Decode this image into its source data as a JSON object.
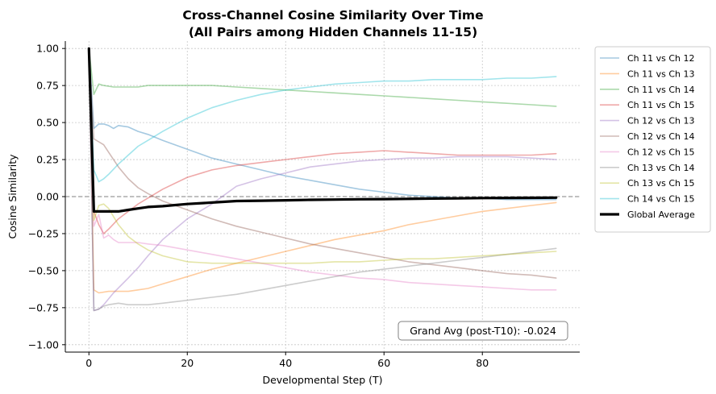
{
  "chart_data": {
    "type": "line",
    "title_line1": "Cross-Channel Cosine Similarity Over Time",
    "title_line2": "(All Pairs among Hidden Channels 11-15)",
    "xlabel": "Developmental Step (T)",
    "ylabel": "Cosine Similarity",
    "xlim": [
      -4.8,
      99.8
    ],
    "ylim": [
      -1.05,
      1.05
    ],
    "xticks": [
      0,
      20,
      40,
      60,
      80
    ],
    "yticks": [
      -1.0,
      -0.75,
      -0.5,
      -0.25,
      0.0,
      0.25,
      0.5,
      0.75,
      1.0
    ],
    "ytick_labels": [
      "−1.00",
      "−0.75",
      "−0.50",
      "−0.25",
      "0.00",
      "0.25",
      "0.50",
      "0.75",
      "1.00"
    ],
    "grid": true,
    "reference_line_y": 0,
    "legend_position": "outside-right",
    "annotation": "Grand Avg (post-T10): -0.024",
    "series": [
      {
        "name": "Ch 11 vs Ch 12",
        "color": "#1f77b4",
        "points": [
          [
            0,
            1.0
          ],
          [
            1,
            0.46
          ],
          [
            2,
            0.49
          ],
          [
            3,
            0.49
          ],
          [
            4,
            0.48
          ],
          [
            5,
            0.46
          ],
          [
            6,
            0.48
          ],
          [
            8,
            0.47
          ],
          [
            10,
            0.44
          ],
          [
            12,
            0.42
          ],
          [
            15,
            0.38
          ],
          [
            20,
            0.32
          ],
          [
            25,
            0.26
          ],
          [
            30,
            0.22
          ],
          [
            35,
            0.18
          ],
          [
            40,
            0.14
          ],
          [
            45,
            0.11
          ],
          [
            50,
            0.08
          ],
          [
            55,
            0.05
          ],
          [
            60,
            0.03
          ],
          [
            65,
            0.01
          ],
          [
            70,
            0.0
          ],
          [
            75,
            -0.01
          ],
          [
            80,
            -0.01
          ],
          [
            85,
            -0.02
          ],
          [
            90,
            -0.02
          ],
          [
            95,
            -0.02
          ]
        ]
      },
      {
        "name": "Ch 11 vs Ch 13",
        "color": "#ff7f0e",
        "points": [
          [
            0,
            1.0
          ],
          [
            1,
            -0.63
          ],
          [
            2,
            -0.65
          ],
          [
            4,
            -0.64
          ],
          [
            6,
            -0.64
          ],
          [
            8,
            -0.64
          ],
          [
            10,
            -0.63
          ],
          [
            12,
            -0.62
          ],
          [
            15,
            -0.59
          ],
          [
            20,
            -0.54
          ],
          [
            25,
            -0.49
          ],
          [
            30,
            -0.45
          ],
          [
            35,
            -0.41
          ],
          [
            40,
            -0.37
          ],
          [
            45,
            -0.33
          ],
          [
            50,
            -0.29
          ],
          [
            55,
            -0.26
          ],
          [
            60,
            -0.23
          ],
          [
            65,
            -0.19
          ],
          [
            70,
            -0.16
          ],
          [
            75,
            -0.13
          ],
          [
            80,
            -0.1
          ],
          [
            85,
            -0.08
          ],
          [
            90,
            -0.06
          ],
          [
            95,
            -0.04
          ]
        ]
      },
      {
        "name": "Ch 11 vs Ch 14",
        "color": "#2ca02c",
        "points": [
          [
            0,
            1.0
          ],
          [
            1,
            0.69
          ],
          [
            2,
            0.76
          ],
          [
            3,
            0.75
          ],
          [
            5,
            0.74
          ],
          [
            8,
            0.74
          ],
          [
            10,
            0.74
          ],
          [
            12,
            0.75
          ],
          [
            15,
            0.75
          ],
          [
            20,
            0.75
          ],
          [
            25,
            0.75
          ],
          [
            30,
            0.74
          ],
          [
            35,
            0.73
          ],
          [
            40,
            0.72
          ],
          [
            45,
            0.71
          ],
          [
            50,
            0.7
          ],
          [
            55,
            0.69
          ],
          [
            60,
            0.68
          ],
          [
            65,
            0.67
          ],
          [
            70,
            0.66
          ],
          [
            75,
            0.65
          ],
          [
            80,
            0.64
          ],
          [
            85,
            0.63
          ],
          [
            90,
            0.62
          ],
          [
            95,
            0.61
          ]
        ]
      },
      {
        "name": "Ch 11 vs Ch 15",
        "color": "#d62728",
        "points": [
          [
            0,
            1.0
          ],
          [
            1,
            -0.1
          ],
          [
            2,
            -0.19
          ],
          [
            3,
            -0.25
          ],
          [
            4,
            -0.22
          ],
          [
            6,
            -0.15
          ],
          [
            8,
            -0.1
          ],
          [
            10,
            -0.05
          ],
          [
            12,
            -0.01
          ],
          [
            15,
            0.05
          ],
          [
            20,
            0.13
          ],
          [
            25,
            0.18
          ],
          [
            30,
            0.21
          ],
          [
            35,
            0.23
          ],
          [
            40,
            0.25
          ],
          [
            45,
            0.27
          ],
          [
            50,
            0.29
          ],
          [
            55,
            0.3
          ],
          [
            60,
            0.31
          ],
          [
            65,
            0.3
          ],
          [
            70,
            0.29
          ],
          [
            75,
            0.28
          ],
          [
            80,
            0.28
          ],
          [
            85,
            0.28
          ],
          [
            90,
            0.28
          ],
          [
            95,
            0.29
          ]
        ]
      },
      {
        "name": "Ch 12 vs Ch 13",
        "color": "#9467bd",
        "points": [
          [
            0,
            1.0
          ],
          [
            1,
            -0.77
          ],
          [
            2,
            -0.76
          ],
          [
            3,
            -0.73
          ],
          [
            5,
            -0.65
          ],
          [
            8,
            -0.55
          ],
          [
            10,
            -0.48
          ],
          [
            12,
            -0.4
          ],
          [
            15,
            -0.29
          ],
          [
            20,
            -0.15
          ],
          [
            25,
            -0.05
          ],
          [
            30,
            0.07
          ],
          [
            35,
            0.12
          ],
          [
            40,
            0.16
          ],
          [
            45,
            0.2
          ],
          [
            50,
            0.22
          ],
          [
            55,
            0.24
          ],
          [
            60,
            0.25
          ],
          [
            65,
            0.26
          ],
          [
            70,
            0.26
          ],
          [
            75,
            0.27
          ],
          [
            80,
            0.27
          ],
          [
            85,
            0.27
          ],
          [
            90,
            0.26
          ],
          [
            95,
            0.25
          ]
        ]
      },
      {
        "name": "Ch 12 vs Ch 14",
        "color": "#8c564b",
        "points": [
          [
            0,
            1.0
          ],
          [
            1,
            0.39
          ],
          [
            2,
            0.37
          ],
          [
            3,
            0.35
          ],
          [
            4,
            0.3
          ],
          [
            6,
            0.2
          ],
          [
            8,
            0.12
          ],
          [
            10,
            0.06
          ],
          [
            12,
            0.02
          ],
          [
            15,
            -0.03
          ],
          [
            20,
            -0.09
          ],
          [
            25,
            -0.15
          ],
          [
            30,
            -0.2
          ],
          [
            35,
            -0.24
          ],
          [
            40,
            -0.28
          ],
          [
            45,
            -0.32
          ],
          [
            50,
            -0.35
          ],
          [
            55,
            -0.38
          ],
          [
            60,
            -0.41
          ],
          [
            65,
            -0.44
          ],
          [
            70,
            -0.46
          ],
          [
            75,
            -0.48
          ],
          [
            80,
            -0.5
          ],
          [
            85,
            -0.52
          ],
          [
            90,
            -0.53
          ],
          [
            95,
            -0.55
          ]
        ]
      },
      {
        "name": "Ch 12 vs Ch 15",
        "color": "#e377c2",
        "points": [
          [
            0,
            1.0
          ],
          [
            1,
            -0.2
          ],
          [
            2,
            -0.12
          ],
          [
            3,
            -0.28
          ],
          [
            4,
            -0.26
          ],
          [
            5,
            -0.29
          ],
          [
            6,
            -0.31
          ],
          [
            8,
            -0.31
          ],
          [
            10,
            -0.31
          ],
          [
            12,
            -0.32
          ],
          [
            15,
            -0.33
          ],
          [
            20,
            -0.36
          ],
          [
            25,
            -0.39
          ],
          [
            30,
            -0.42
          ],
          [
            35,
            -0.45
          ],
          [
            40,
            -0.48
          ],
          [
            45,
            -0.51
          ],
          [
            50,
            -0.53
          ],
          [
            55,
            -0.55
          ],
          [
            60,
            -0.56
          ],
          [
            65,
            -0.58
          ],
          [
            70,
            -0.59
          ],
          [
            75,
            -0.6
          ],
          [
            80,
            -0.61
          ],
          [
            85,
            -0.62
          ],
          [
            90,
            -0.63
          ],
          [
            95,
            -0.63
          ]
        ]
      },
      {
        "name": "Ch 13 vs Ch 14",
        "color": "#7f7f7f",
        "points": [
          [
            0,
            1.0
          ],
          [
            1,
            -0.77
          ],
          [
            2,
            -0.76
          ],
          [
            3,
            -0.74
          ],
          [
            4,
            -0.73
          ],
          [
            6,
            -0.72
          ],
          [
            8,
            -0.73
          ],
          [
            10,
            -0.73
          ],
          [
            12,
            -0.73
          ],
          [
            15,
            -0.72
          ],
          [
            20,
            -0.7
          ],
          [
            25,
            -0.68
          ],
          [
            30,
            -0.66
          ],
          [
            35,
            -0.63
          ],
          [
            40,
            -0.6
          ],
          [
            45,
            -0.57
          ],
          [
            50,
            -0.54
          ],
          [
            55,
            -0.51
          ],
          [
            60,
            -0.49
          ],
          [
            65,
            -0.47
          ],
          [
            70,
            -0.45
          ],
          [
            75,
            -0.43
          ],
          [
            80,
            -0.41
          ],
          [
            85,
            -0.39
          ],
          [
            90,
            -0.37
          ],
          [
            95,
            -0.35
          ]
        ]
      },
      {
        "name": "Ch 13 vs Ch 15",
        "color": "#bcbd22",
        "points": [
          [
            0,
            1.0
          ],
          [
            1,
            -0.16
          ],
          [
            2,
            -0.06
          ],
          [
            3,
            -0.05
          ],
          [
            4,
            -0.08
          ],
          [
            6,
            -0.19
          ],
          [
            8,
            -0.27
          ],
          [
            10,
            -0.32
          ],
          [
            12,
            -0.36
          ],
          [
            15,
            -0.4
          ],
          [
            20,
            -0.44
          ],
          [
            25,
            -0.45
          ],
          [
            30,
            -0.45
          ],
          [
            35,
            -0.45
          ],
          [
            40,
            -0.45
          ],
          [
            45,
            -0.45
          ],
          [
            50,
            -0.44
          ],
          [
            55,
            -0.44
          ],
          [
            60,
            -0.43
          ],
          [
            65,
            -0.42
          ],
          [
            70,
            -0.42
          ],
          [
            75,
            -0.41
          ],
          [
            80,
            -0.4
          ],
          [
            85,
            -0.39
          ],
          [
            90,
            -0.38
          ],
          [
            95,
            -0.37
          ]
        ]
      },
      {
        "name": "Ch 14 vs Ch 15",
        "color": "#17becf",
        "points": [
          [
            0,
            1.0
          ],
          [
            1,
            0.18
          ],
          [
            2,
            0.1
          ],
          [
            3,
            0.12
          ],
          [
            4,
            0.15
          ],
          [
            6,
            0.22
          ],
          [
            8,
            0.28
          ],
          [
            10,
            0.34
          ],
          [
            12,
            0.38
          ],
          [
            15,
            0.44
          ],
          [
            20,
            0.53
          ],
          [
            25,
            0.6
          ],
          [
            30,
            0.65
          ],
          [
            35,
            0.69
          ],
          [
            40,
            0.72
          ],
          [
            45,
            0.74
          ],
          [
            50,
            0.76
          ],
          [
            55,
            0.77
          ],
          [
            60,
            0.78
          ],
          [
            65,
            0.78
          ],
          [
            70,
            0.79
          ],
          [
            75,
            0.79
          ],
          [
            80,
            0.79
          ],
          [
            85,
            0.8
          ],
          [
            90,
            0.8
          ],
          [
            95,
            0.81
          ]
        ]
      },
      {
        "name": "Global Average",
        "color": "#000000",
        "points": [
          [
            0,
            1.0
          ],
          [
            1,
            -0.1
          ],
          [
            2,
            -0.1
          ],
          [
            3,
            -0.1
          ],
          [
            4,
            -0.1
          ],
          [
            6,
            -0.1
          ],
          [
            8,
            -0.09
          ],
          [
            10,
            -0.08
          ],
          [
            12,
            -0.07
          ],
          [
            15,
            -0.065
          ],
          [
            20,
            -0.05
          ],
          [
            25,
            -0.04
          ],
          [
            30,
            -0.03
          ],
          [
            35,
            -0.028
          ],
          [
            40,
            -0.025
          ],
          [
            45,
            -0.022
          ],
          [
            50,
            -0.02
          ],
          [
            55,
            -0.018
          ],
          [
            60,
            -0.017
          ],
          [
            65,
            -0.015
          ],
          [
            70,
            -0.013
          ],
          [
            75,
            -0.012
          ],
          [
            80,
            -0.01
          ],
          [
            85,
            -0.009
          ],
          [
            90,
            -0.008
          ],
          [
            95,
            -0.007
          ]
        ]
      }
    ]
  }
}
